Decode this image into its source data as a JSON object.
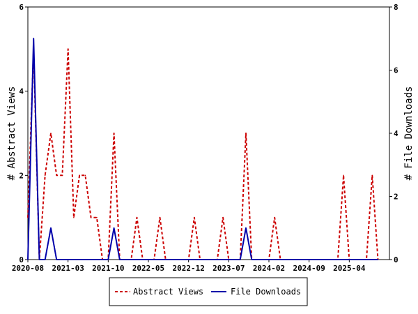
{
  "chart_data": {
    "type": "line",
    "ylabel_left": "# Abstract Views",
    "ylabel_right": "# File Downloads",
    "x_tick_labels": [
      "2020-08",
      "2021-03",
      "2021-10",
      "2022-05",
      "2022-12",
      "2023-07",
      "2024-02",
      "2024-09",
      "2025-04"
    ],
    "x_range_months": [
      "2020-08",
      "2025-11"
    ],
    "ylim_left": [
      0,
      6
    ],
    "ylim_right": [
      0,
      8
    ],
    "yticks_left": [
      0,
      2,
      4,
      6
    ],
    "yticks_right": [
      0,
      2,
      4,
      6,
      8
    ],
    "legend_position": "bottom",
    "series": [
      {
        "name": "Abstract Views",
        "axis": "left",
        "color": "#cc0000",
        "style": "dashed",
        "points": [
          [
            "2020-08",
            1
          ],
          [
            "2020-09",
            5
          ],
          [
            "2020-10",
            0
          ],
          [
            "2020-11",
            2
          ],
          [
            "2020-12",
            3
          ],
          [
            "2021-01",
            2
          ],
          [
            "2021-02",
            2
          ],
          [
            "2021-03",
            5
          ],
          [
            "2021-04",
            1
          ],
          [
            "2021-05",
            2
          ],
          [
            "2021-06",
            2
          ],
          [
            "2021-07",
            1
          ],
          [
            "2021-08",
            1
          ],
          [
            "2021-09",
            0
          ],
          [
            "2021-10",
            0
          ],
          [
            "2021-11",
            3
          ],
          [
            "2021-12",
            0
          ],
          [
            "2022-01",
            0
          ],
          [
            "2022-02",
            0
          ],
          [
            "2022-03",
            1
          ],
          [
            "2022-04",
            0
          ],
          [
            "2022-05",
            0
          ],
          [
            "2022-06",
            0
          ],
          [
            "2022-07",
            1
          ],
          [
            "2022-08",
            0
          ],
          [
            "2022-09",
            0
          ],
          [
            "2022-10",
            0
          ],
          [
            "2022-11",
            0
          ],
          [
            "2022-12",
            0
          ],
          [
            "2023-01",
            1
          ],
          [
            "2023-02",
            0
          ],
          [
            "2023-03",
            0
          ],
          [
            "2023-04",
            0
          ],
          [
            "2023-05",
            0
          ],
          [
            "2023-06",
            1
          ],
          [
            "2023-07",
            0
          ],
          [
            "2023-08",
            0
          ],
          [
            "2023-09",
            0
          ],
          [
            "2023-10",
            3
          ],
          [
            "2023-11",
            0
          ],
          [
            "2023-12",
            0
          ],
          [
            "2024-01",
            0
          ],
          [
            "2024-02",
            0
          ],
          [
            "2024-03",
            1
          ],
          [
            "2024-04",
            0
          ],
          [
            "2024-05",
            0
          ],
          [
            "2024-06",
            0
          ],
          [
            "2024-07",
            0
          ],
          [
            "2024-08",
            0
          ],
          [
            "2024-09",
            0
          ],
          [
            "2024-10",
            0
          ],
          [
            "2024-11",
            0
          ],
          [
            "2024-12",
            0
          ],
          [
            "2025-01",
            0
          ],
          [
            "2025-02",
            0
          ],
          [
            "2025-03",
            2
          ],
          [
            "2025-04",
            0
          ],
          [
            "2025-05",
            0
          ],
          [
            "2025-06",
            0
          ],
          [
            "2025-07",
            0
          ],
          [
            "2025-08",
            2
          ],
          [
            "2025-09",
            0
          ]
        ]
      },
      {
        "name": "File Downloads",
        "axis": "right",
        "color": "#0000aa",
        "style": "solid",
        "points": [
          [
            "2020-08",
            0
          ],
          [
            "2020-09",
            7
          ],
          [
            "2020-10",
            0
          ],
          [
            "2020-11",
            0
          ],
          [
            "2020-12",
            1
          ],
          [
            "2021-01",
            0
          ],
          [
            "2021-02",
            0
          ],
          [
            "2021-03",
            0
          ],
          [
            "2021-04",
            0
          ],
          [
            "2021-05",
            0
          ],
          [
            "2021-06",
            0
          ],
          [
            "2021-07",
            0
          ],
          [
            "2021-08",
            0
          ],
          [
            "2021-09",
            0
          ],
          [
            "2021-10",
            0
          ],
          [
            "2021-11",
            1
          ],
          [
            "2021-12",
            0
          ],
          [
            "2022-01",
            0
          ],
          [
            "2022-02",
            0
          ],
          [
            "2022-03",
            0
          ],
          [
            "2022-04",
            0
          ],
          [
            "2022-05",
            0
          ],
          [
            "2022-06",
            0
          ],
          [
            "2022-07",
            0
          ],
          [
            "2022-08",
            0
          ],
          [
            "2022-09",
            0
          ],
          [
            "2022-10",
            0
          ],
          [
            "2022-11",
            0
          ],
          [
            "2022-12",
            0
          ],
          [
            "2023-01",
            0
          ],
          [
            "2023-02",
            0
          ],
          [
            "2023-03",
            0
          ],
          [
            "2023-04",
            0
          ],
          [
            "2023-05",
            0
          ],
          [
            "2023-06",
            0
          ],
          [
            "2023-07",
            0
          ],
          [
            "2023-08",
            0
          ],
          [
            "2023-09",
            0
          ],
          [
            "2023-10",
            1
          ],
          [
            "2023-11",
            0
          ],
          [
            "2023-12",
            0
          ],
          [
            "2024-01",
            0
          ],
          [
            "2024-02",
            0
          ],
          [
            "2024-03",
            0
          ],
          [
            "2024-04",
            0
          ],
          [
            "2024-05",
            0
          ],
          [
            "2024-06",
            0
          ],
          [
            "2024-07",
            0
          ],
          [
            "2024-08",
            0
          ],
          [
            "2024-09",
            0
          ],
          [
            "2024-10",
            0
          ],
          [
            "2024-11",
            0
          ],
          [
            "2024-12",
            0
          ],
          [
            "2025-01",
            0
          ],
          [
            "2025-02",
            0
          ],
          [
            "2025-03",
            0
          ],
          [
            "2025-04",
            0
          ],
          [
            "2025-05",
            0
          ],
          [
            "2025-06",
            0
          ],
          [
            "2025-07",
            0
          ],
          [
            "2025-08",
            0
          ],
          [
            "2025-09",
            0
          ]
        ]
      }
    ]
  }
}
